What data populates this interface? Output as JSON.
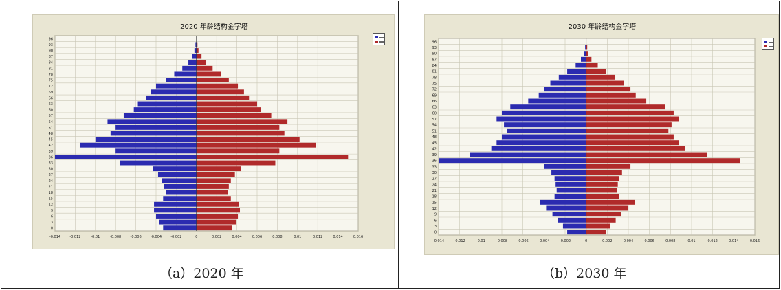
{
  "colors": {
    "male": "#2b2bb0",
    "female": "#b02a2a",
    "background": "#e9e6d3",
    "plot": "#f7f6ee",
    "grid": "#c9c6b4"
  },
  "panels": [
    {
      "caption": "（a）2020 年",
      "chart_data": {
        "type": "bar",
        "orientation": "horizontal",
        "title": "2020 年龄结构金字塔",
        "ages": [
          0,
          3,
          6,
          9,
          12,
          15,
          18,
          21,
          24,
          27,
          30,
          33,
          36,
          39,
          42,
          45,
          48,
          51,
          54,
          57,
          60,
          63,
          66,
          69,
          72,
          75,
          78,
          81,
          84,
          87,
          90,
          93,
          96
        ],
        "x_ticks": [
          "-0.014",
          "-0.012",
          "-0.01",
          "-0.008",
          "-0.006",
          "-0.004",
          "-0.002",
          "0",
          "0.002",
          "0.004",
          "0.006",
          "0.008",
          "0.01",
          "0.012",
          "0.014",
          "0.016"
        ],
        "xlim": [
          -0.014,
          0.016
        ],
        "grid": true,
        "series": [
          {
            "color": "#2b2bb0",
            "values": [
              -0.0033,
              -0.0037,
              -0.004,
              -0.0042,
              -0.0042,
              -0.0033,
              -0.003,
              -0.0032,
              -0.0034,
              -0.0038,
              -0.0043,
              -0.0076,
              -0.014,
              -0.008,
              -0.0115,
              -0.01,
              -0.0085,
              -0.008,
              -0.0088,
              -0.0072,
              -0.0062,
              -0.0058,
              -0.005,
              -0.0045,
              -0.004,
              -0.003,
              -0.0022,
              -0.0014,
              -0.0008,
              -0.0004,
              -0.0002,
              -0.0001,
              0
            ]
          },
          {
            "color": "#b02a2a",
            "values": [
              0.0035,
              0.0039,
              0.0041,
              0.0043,
              0.0042,
              0.0034,
              0.0031,
              0.0032,
              0.0034,
              0.0038,
              0.0044,
              0.0078,
              0.015,
              0.0082,
              0.0118,
              0.0102,
              0.0087,
              0.0082,
              0.009,
              0.0074,
              0.0064,
              0.006,
              0.0052,
              0.0047,
              0.0041,
              0.0032,
              0.0024,
              0.0016,
              0.0009,
              0.0005,
              0.0002,
              0.0001,
              0
            ]
          }
        ]
      }
    },
    {
      "caption": "（b）2030 年",
      "chart_data": {
        "type": "bar",
        "orientation": "horizontal",
        "title": "2030 年龄结构金字塔",
        "ages": [
          0,
          3,
          6,
          9,
          12,
          15,
          18,
          21,
          24,
          27,
          30,
          33,
          36,
          39,
          42,
          45,
          48,
          51,
          54,
          57,
          60,
          63,
          66,
          69,
          72,
          75,
          78,
          81,
          84,
          87,
          90,
          93,
          96
        ],
        "x_ticks": [
          "-0.014",
          "-0.012",
          "-0.01",
          "-0.008",
          "-0.006",
          "-0.004",
          "-0.002",
          "0",
          "0.002",
          "0.004",
          "0.006",
          "0.008",
          "0.01",
          "0.012",
          "0.014",
          "0.016"
        ],
        "xlim": [
          -0.014,
          0.016
        ],
        "grid": true,
        "series": [
          {
            "color": "#2b2bb0",
            "values": [
              -0.0018,
              -0.0022,
              -0.0027,
              -0.0032,
              -0.0038,
              -0.0044,
              -0.003,
              -0.0028,
              -0.0029,
              -0.003,
              -0.0033,
              -0.004,
              -0.014,
              -0.011,
              -0.009,
              -0.0085,
              -0.008,
              -0.0075,
              -0.0078,
              -0.0085,
              -0.008,
              -0.0072,
              -0.0055,
              -0.0045,
              -0.004,
              -0.0034,
              -0.0026,
              -0.0018,
              -0.001,
              -0.0005,
              -0.0002,
              -0.0001,
              0
            ]
          },
          {
            "color": "#b02a2a",
            "values": [
              0.0019,
              0.0023,
              0.0028,
              0.0033,
              0.004,
              0.0046,
              0.0031,
              0.0029,
              0.003,
              0.0031,
              0.0034,
              0.0042,
              0.0146,
              0.0115,
              0.0094,
              0.0088,
              0.0083,
              0.0078,
              0.0081,
              0.0088,
              0.0083,
              0.0075,
              0.0057,
              0.0047,
              0.0042,
              0.0036,
              0.0027,
              0.0019,
              0.0011,
              0.0005,
              0.0002,
              0.0001,
              0
            ]
          }
        ]
      }
    }
  ]
}
